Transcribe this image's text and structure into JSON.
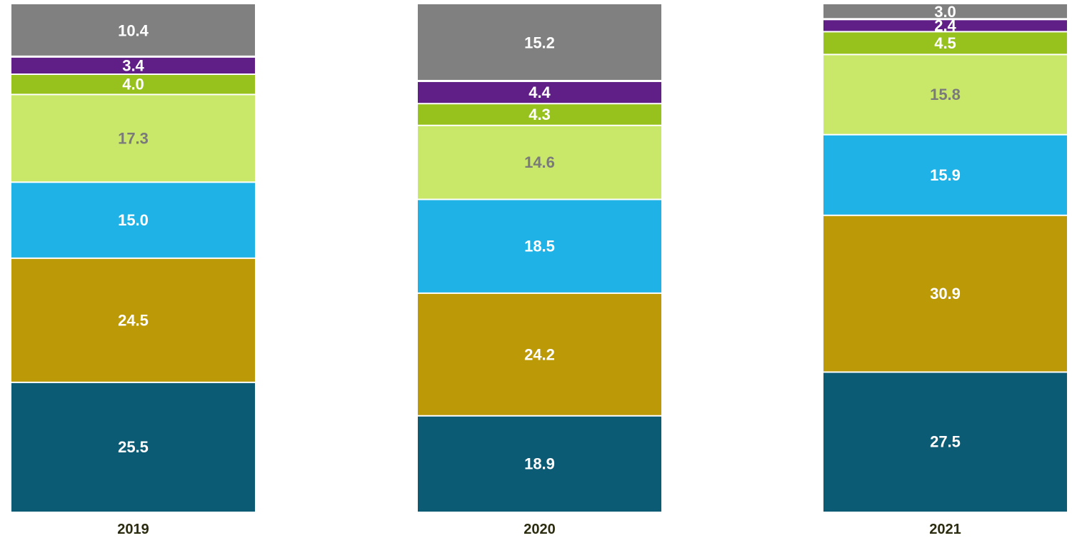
{
  "chart_data": {
    "type": "bar",
    "stacked": true,
    "normalized_percent": true,
    "categories": [
      "2019",
      "2020",
      "2021"
    ],
    "series": [
      {
        "values": [
          25.5,
          18.9,
          27.5
        ],
        "color": "#0c5b74",
        "label_color": "#ffffff"
      },
      {
        "values": [
          24.5,
          24.2,
          30.9
        ],
        "color": "#bc9a07",
        "label_color": "#ffffff"
      },
      {
        "values": [
          15.0,
          18.5,
          15.9
        ],
        "color": "#1fb2e6",
        "label_color": "#ffffff"
      },
      {
        "values": [
          17.3,
          14.6,
          15.8
        ],
        "color": "#c9e86a",
        "label_color": "#7a7a7a"
      },
      {
        "values": [
          4.0,
          4.3,
          4.5
        ],
        "color": "#97c11c",
        "label_color": "#ffffff"
      },
      {
        "values": [
          3.4,
          4.4,
          2.4
        ],
        "color": "#601e87",
        "label_color": "#ffffff"
      },
      {
        "values": [
          10.4,
          15.2,
          3.0
        ],
        "color": "#808080",
        "label_color": "#ffffff"
      }
    ],
    "value_format": "0.0",
    "legend": "none",
    "grid": false
  }
}
